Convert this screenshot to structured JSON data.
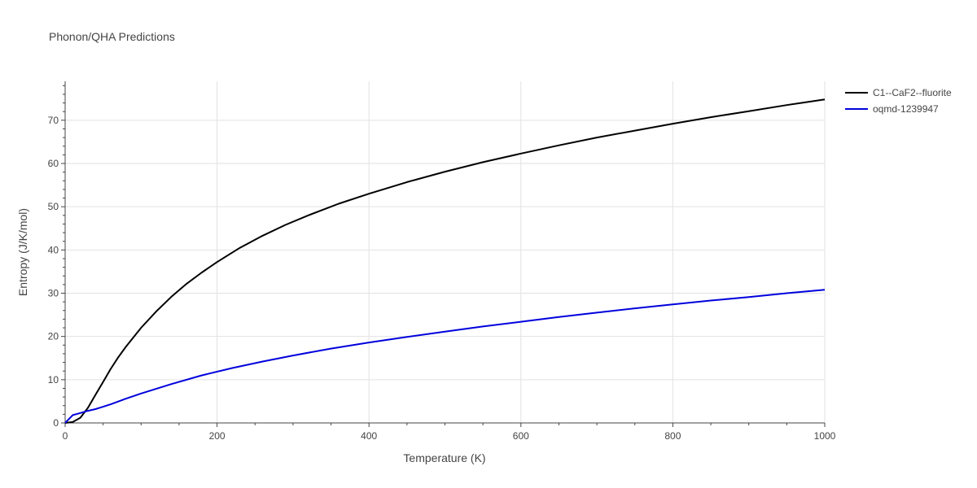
{
  "chart_data": {
    "type": "line",
    "title": "Phonon/QHA Predictions",
    "xlabel": "Temperature (K)",
    "ylabel": "Entropy (J/K/mol)",
    "xlim": [
      0,
      1000
    ],
    "ylim": [
      0,
      79
    ],
    "xticks": [
      0,
      200,
      400,
      600,
      800,
      1000
    ],
    "yticks": [
      0,
      10,
      20,
      30,
      40,
      50,
      60,
      70
    ],
    "grid": true,
    "legend_position": "top-right",
    "series": [
      {
        "name": "C1--CaF2--fluorite",
        "color": "#000000",
        "x": [
          0,
          10,
          20,
          30,
          40,
          50,
          60,
          70,
          80,
          100,
          120,
          140,
          160,
          180,
          200,
          230,
          260,
          290,
          320,
          360,
          400,
          450,
          500,
          550,
          600,
          650,
          700,
          750,
          800,
          850,
          900,
          950,
          1000
        ],
        "y": [
          0,
          0.2,
          1.2,
          3.5,
          6.5,
          9.5,
          12.5,
          15.2,
          17.6,
          22.0,
          25.8,
          29.2,
          32.2,
          34.8,
          37.2,
          40.5,
          43.3,
          45.8,
          48.0,
          50.7,
          53.0,
          55.7,
          58.1,
          60.3,
          62.3,
          64.2,
          66.0,
          67.6,
          69.2,
          70.7,
          72.1,
          73.5,
          74.8
        ]
      },
      {
        "name": "oqmd-1239947",
        "color": "#0000dd",
        "x": [
          0,
          10,
          20,
          30,
          40,
          60,
          80,
          100,
          140,
          180,
          220,
          260,
          300,
          350,
          400,
          450,
          500,
          550,
          600,
          650,
          700,
          750,
          800,
          850,
          900,
          950,
          1000
        ],
        "y": [
          0,
          1.8,
          2.3,
          2.8,
          3.2,
          4.3,
          5.6,
          6.8,
          9.0,
          11.0,
          12.7,
          14.2,
          15.6,
          17.2,
          18.6,
          19.9,
          21.1,
          22.3,
          23.4,
          24.5,
          25.5,
          26.5,
          27.4,
          28.3,
          29.1,
          30.0,
          30.8
        ]
      }
    ]
  }
}
